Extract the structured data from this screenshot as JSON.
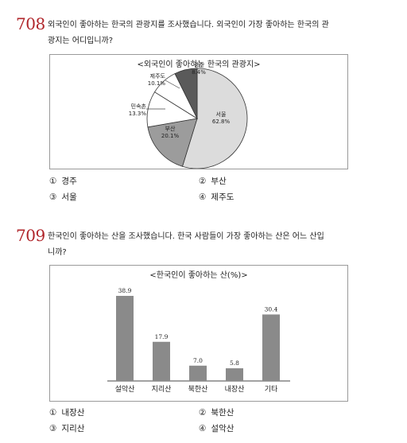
{
  "q708": {
    "number": "708",
    "text_line1": "외국인이 좋아하는 한국의 관광지를 조사했습니다. 외국인이 가장 좋아하는 한국의 관",
    "text_line2": "광지는 어디입니까?",
    "options": [
      {
        "mark": "①",
        "label": "경주"
      },
      {
        "mark": "②",
        "label": "부산"
      },
      {
        "mark": "③",
        "label": "서울"
      },
      {
        "mark": "④",
        "label": "제주도"
      }
    ]
  },
  "q709": {
    "number": "709",
    "text_line1": "한국인이 좋아하는 산을 조사했습니다. 한국 사람들이 가장 좋아하는 산은 어느 산입",
    "text_line2": "니까?",
    "options": [
      {
        "mark": "①",
        "label": "내장산"
      },
      {
        "mark": "②",
        "label": "북한산"
      },
      {
        "mark": "③",
        "label": "지리산"
      },
      {
        "mark": "④",
        "label": "설악산"
      }
    ]
  },
  "chart_data": [
    {
      "type": "pie",
      "title": "<외국인이 좋아하는 한국의 관광지>",
      "slices": [
        {
          "name": "서울",
          "value": 62.8,
          "label": "62.8%",
          "color": "#dcdcdc"
        },
        {
          "name": "부산",
          "value": 20.1,
          "label": "20.1%",
          "color": "#9c9c9c"
        },
        {
          "name": "민속촌",
          "value": 13.3,
          "label": "13.3%",
          "color": "#ffffff"
        },
        {
          "name": "제주도",
          "value": 10.1,
          "label": "10.1%",
          "color": "#ffffff"
        },
        {
          "name": "경주",
          "value": 8.4,
          "label": "8.4%",
          "color": "#5a5a5a"
        }
      ]
    },
    {
      "type": "bar",
      "title": "<한국인이 좋아하는 산(%)>",
      "categories": [
        "설악산",
        "지리산",
        "북한산",
        "내장산",
        "기타"
      ],
      "values": [
        38.9,
        17.9,
        7.0,
        5.8,
        30.4
      ],
      "value_labels": [
        "38.9",
        "17.9",
        "7.0",
        "5.8",
        "30.4"
      ],
      "bar_color": "#8a8a8a",
      "ylim": [
        0,
        40
      ]
    }
  ]
}
